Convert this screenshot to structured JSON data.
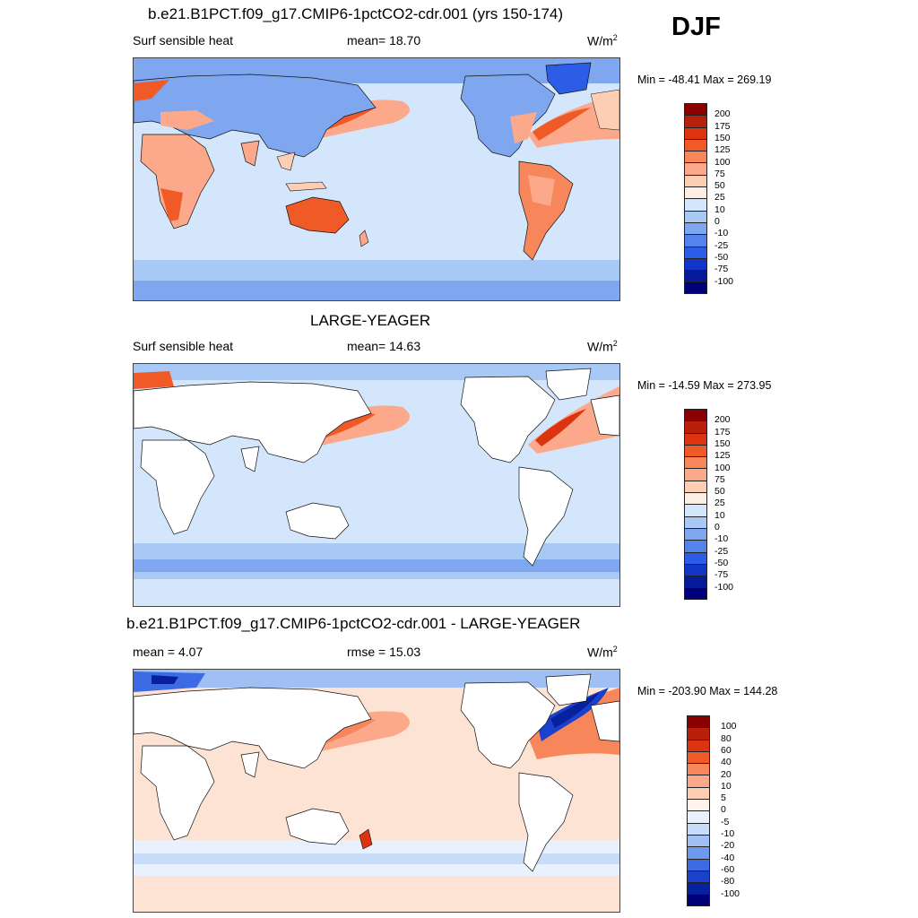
{
  "season": "DJF",
  "panels": [
    {
      "title": "b.e21.B1PCT.f09_g17.CMIP6-1pctCO2-cdr.001 (yrs 150-174)",
      "left_label": "Surf sensible heat",
      "mid_label": "mean=  18.70",
      "units": "W/m",
      "units_sup": "2",
      "minmax": "Min = -48.41 Max = 269.19",
      "ocean_color": "#d3e6fb",
      "land": true,
      "colorbar": {
        "labels": [
          "200",
          "175",
          "150",
          "125",
          "100",
          "75",
          "50",
          "25",
          "10",
          "0",
          "-10",
          "-25",
          "-50",
          "-75",
          "-100"
        ],
        "colors": [
          "#8b0000",
          "#b8200b",
          "#dc3410",
          "#f05a26",
          "#f7865a",
          "#fba98a",
          "#fdcdb4",
          "#fdeee4",
          "#d3e6fb",
          "#a8c8f5",
          "#7ea7f0",
          "#5583ec",
          "#2d5ce6",
          "#1237c8",
          "#061a9c",
          "#000078"
        ]
      }
    },
    {
      "title": "LARGE-YEAGER",
      "left_label": "Surf sensible heat",
      "mid_label": "mean=  14.63",
      "units": "W/m",
      "units_sup": "2",
      "minmax": "Min = -14.59 Max = 273.95",
      "ocean_color": "#d3e6fb",
      "land": false,
      "colorbar": {
        "labels": [
          "200",
          "175",
          "150",
          "125",
          "100",
          "75",
          "50",
          "25",
          "10",
          "0",
          "-10",
          "-25",
          "-50",
          "-75",
          "-100"
        ],
        "colors": [
          "#8b0000",
          "#b8200b",
          "#dc3410",
          "#f05a26",
          "#f7865a",
          "#fba98a",
          "#fdcdb4",
          "#fdeee4",
          "#d3e6fb",
          "#a8c8f5",
          "#7ea7f0",
          "#5583ec",
          "#2d5ce6",
          "#1237c8",
          "#061a9c",
          "#000078"
        ]
      }
    },
    {
      "title": "b.e21.B1PCT.f09_g17.CMIP6-1pctCO2-cdr.001 - LARGE-YEAGER",
      "left_label": "mean =   4.07",
      "mid_label": "rmse =  15.03",
      "units": "W/m",
      "units_sup": "2",
      "minmax": "Min = -203.90 Max = 144.28",
      "ocean_color": "#fde3d3",
      "land": false,
      "colorbar": {
        "labels": [
          "100",
          "80",
          "60",
          "40",
          "20",
          "10",
          "5",
          "0",
          "-5",
          "-10",
          "-20",
          "-40",
          "-60",
          "-80",
          "-100"
        ],
        "colors": [
          "#8b0000",
          "#b8200b",
          "#dc3410",
          "#f05a26",
          "#f7865a",
          "#fba98a",
          "#fdcdb4",
          "#fff3ec",
          "#e8f1fd",
          "#c6dcf8",
          "#a0c0f3",
          "#6f98ee",
          "#3d6be6",
          "#1a40cc",
          "#06209e",
          "#000078"
        ]
      }
    }
  ]
}
